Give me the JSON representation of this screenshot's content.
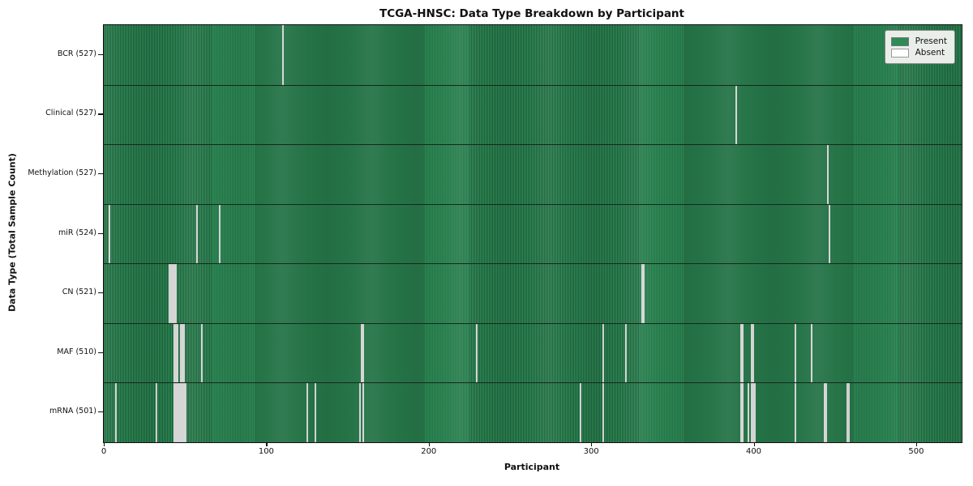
{
  "title": "TCGA-HNSC: Data Type Breakdown by Participant",
  "colors": {
    "present": "#2e8b57",
    "present_edge": "#1d5c38",
    "absent": "#ededed",
    "row_border": "#16281c",
    "legend_bg": "#e9eee9",
    "axis": "#111111"
  },
  "chart_data": {
    "type": "heatmap",
    "title": "TCGA-HNSC: Data Type Breakdown by Participant",
    "xlabel": "Participant",
    "ylabel": "Data Type (Total Sample Count)",
    "x_range": [
      0,
      528
    ],
    "x_ticks": [
      0,
      100,
      200,
      300,
      400,
      500
    ],
    "grid": false,
    "legend_position": "upper right",
    "legend": [
      {
        "label": "Present",
        "color": "#2e8b57"
      },
      {
        "label": "Absent",
        "color": "#ffffff"
      }
    ],
    "cell_values": {
      "present": 1,
      "absent": 0
    },
    "rows": [
      {
        "label": "BCR (527)",
        "data_type": "BCR",
        "total_samples": 527,
        "absent_participants": [
          110
        ]
      },
      {
        "label": "Clinical (527)",
        "data_type": "Clinical",
        "total_samples": 527,
        "absent_participants": [
          389
        ]
      },
      {
        "label": "Methylation (527)",
        "data_type": "Methylation",
        "total_samples": 527,
        "absent_participants": [
          445
        ]
      },
      {
        "label": "miR (524)",
        "data_type": "miR",
        "total_samples": 524,
        "absent_participants": [
          3,
          57,
          71,
          446
        ]
      },
      {
        "label": "CN (521)",
        "data_type": "CN",
        "total_samples": 521,
        "absent_participants": [
          40,
          41,
          42,
          43,
          44,
          331,
          332
        ]
      },
      {
        "label": "MAF (510)",
        "data_type": "MAF",
        "total_samples": 510,
        "absent_participants": [
          43,
          44,
          45,
          47,
          48,
          49,
          60,
          158,
          159,
          229,
          307,
          321,
          392,
          393,
          398,
          399,
          425,
          435
        ]
      },
      {
        "label": "mRNA (501)",
        "data_type": "mRNA",
        "total_samples": 501,
        "absent_participants": [
          7,
          32,
          43,
          44,
          45,
          46,
          47,
          48,
          49,
          50,
          125,
          130,
          157,
          159,
          293,
          307,
          392,
          393,
          396,
          398,
          399,
          400,
          425,
          443,
          444,
          457,
          458
        ]
      }
    ]
  }
}
